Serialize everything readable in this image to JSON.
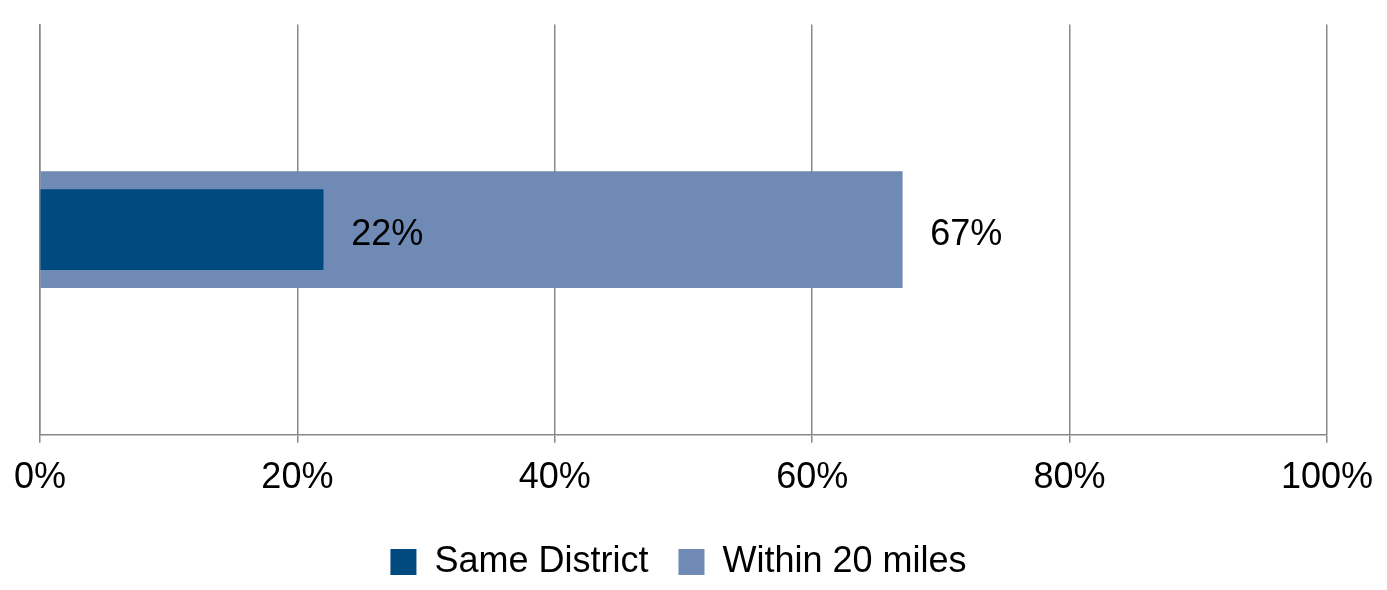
{
  "chart_data": {
    "type": "bar",
    "orientation": "horizontal",
    "categories": [
      null
    ],
    "series": [
      {
        "name": "Same District",
        "color": "#004a80",
        "values": [
          22
        ],
        "value_labels": [
          "22%"
        ]
      },
      {
        "name": "Within 20 miles",
        "color": "#6f8ab5",
        "values": [
          67
        ],
        "value_labels": [
          "67%"
        ]
      }
    ],
    "xlim": [
      0,
      100
    ],
    "xticks": [
      {
        "value": 0,
        "label": "0%"
      },
      {
        "value": 20,
        "label": "20%"
      },
      {
        "value": 40,
        "label": "40%"
      },
      {
        "value": 60,
        "label": "60%"
      },
      {
        "value": 80,
        "label": "80%"
      },
      {
        "value": 100,
        "label": "100%"
      }
    ],
    "grid": "x",
    "legend": "bottom"
  }
}
